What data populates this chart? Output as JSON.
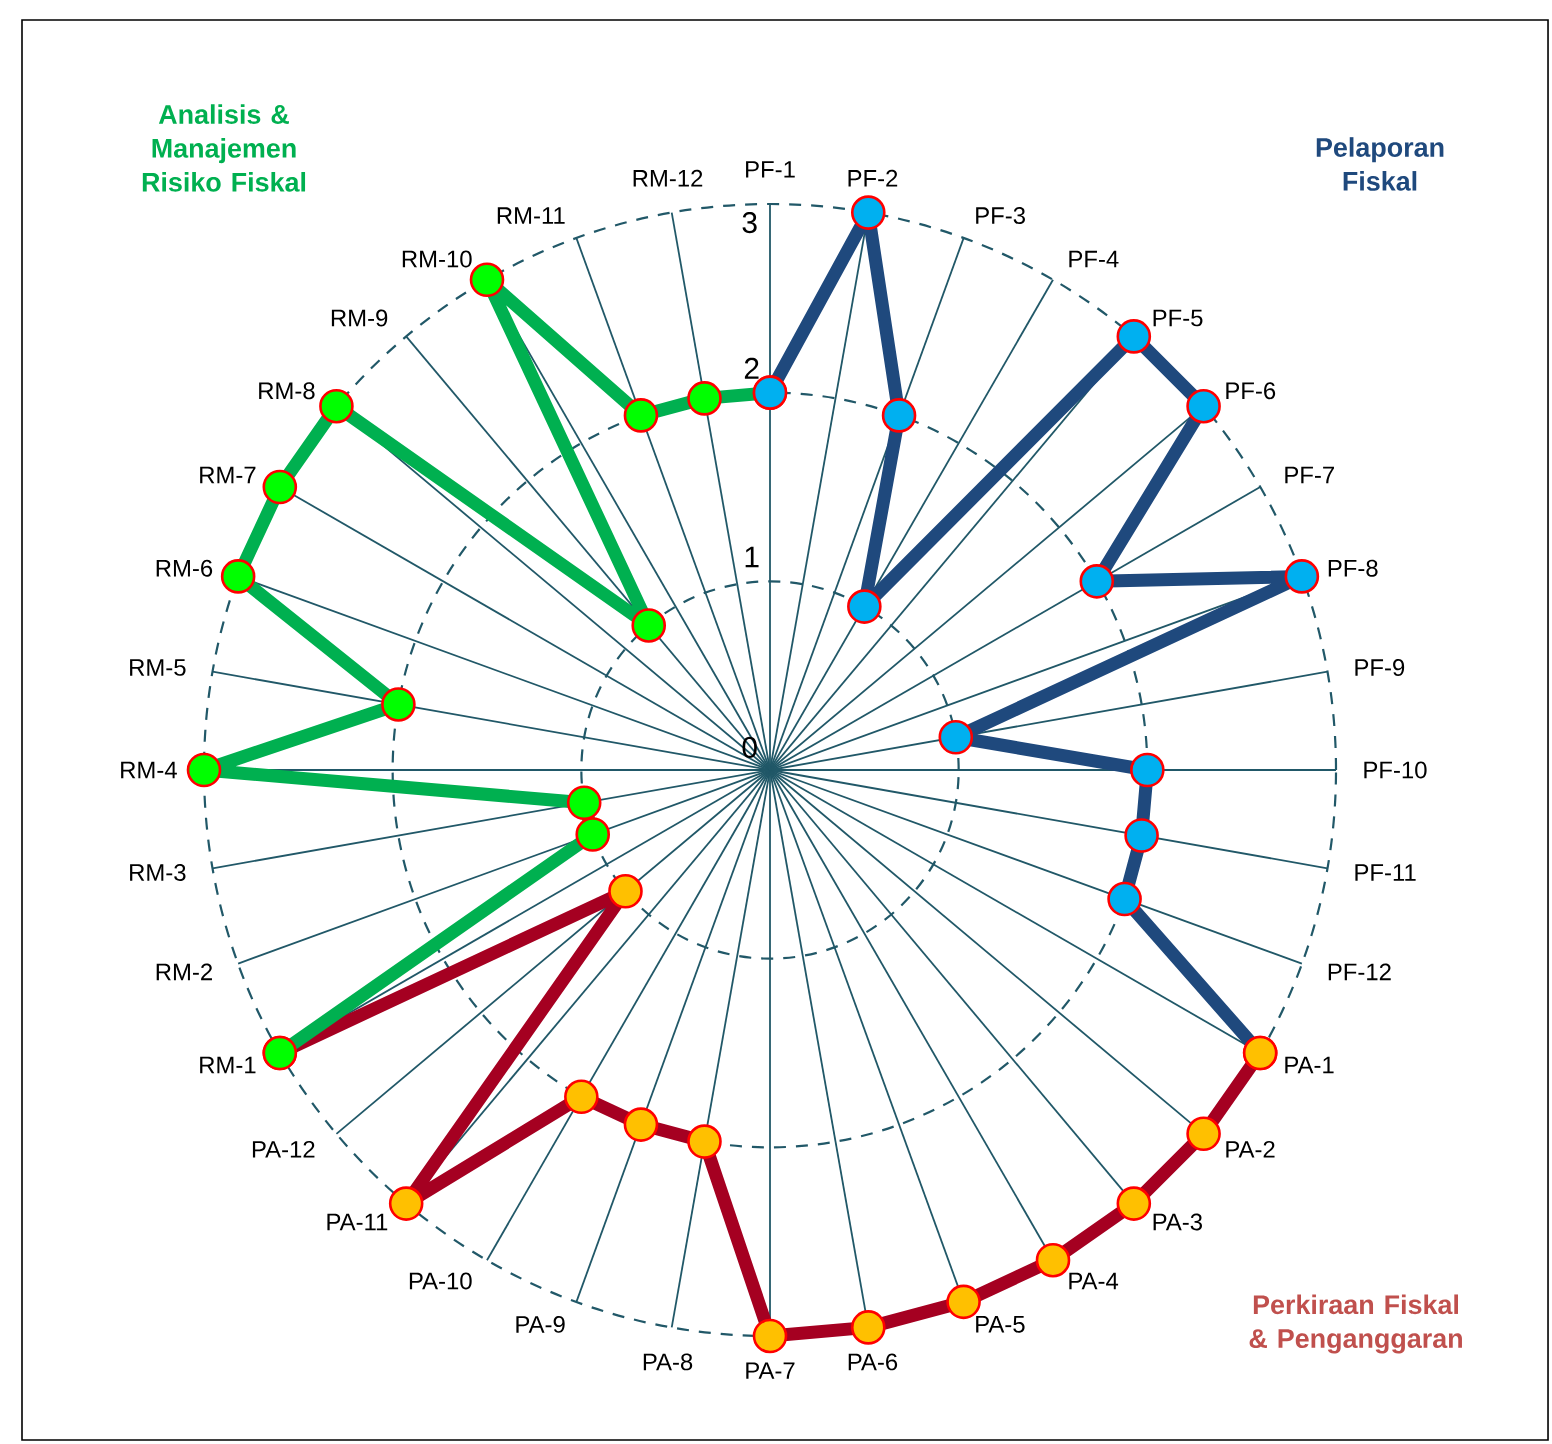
{
  "chart_data": {
    "type": "radar",
    "categories": [
      "PF-1",
      "PF-2",
      "PF-3",
      "PF-4",
      "PF-5",
      "PF-6",
      "PF-7",
      "PF-8",
      "PF-9",
      "PF-10",
      "PF-11",
      "PF-12",
      "PA-1",
      "PA-2",
      "PA-3",
      "PA-4",
      "PA-5",
      "PA-6",
      "PA-7",
      "PA-8",
      "PA-9",
      "PA-10",
      "PA-11",
      "PA-12",
      "RM-1",
      "RM-2",
      "RM-3",
      "RM-4",
      "RM-5",
      "RM-6",
      "RM-7",
      "RM-8",
      "RM-9",
      "RM-10",
      "RM-11",
      "RM-12"
    ],
    "ylim": [
      0,
      3
    ],
    "yticks": [
      0,
      1,
      2,
      3
    ],
    "grid": true,
    "series": [
      {
        "color": "#1f497d",
        "marker": "circle",
        "values": [
          2,
          3,
          2,
          1,
          3,
          3,
          2,
          3,
          1,
          2,
          2,
          2,
          3,
          null,
          null,
          null,
          null,
          null,
          null,
          null,
          null,
          null,
          null,
          null,
          null,
          null,
          null,
          null,
          null,
          null,
          null,
          null,
          null,
          null,
          null,
          null
        ],
        "colors": [
          "#00b0f0",
          "#00b0f0",
          "#00b0f0",
          "#00b0f0",
          "#00b0f0",
          "#00b0f0",
          "#00b0f0",
          "#00b0f0",
          "#00b0f0",
          "#00b0f0",
          "#00b0f0",
          "#00b0f0",
          "#ffc000",
          null,
          null,
          null,
          null,
          null,
          null,
          null,
          null,
          null,
          null,
          null,
          null,
          null,
          null,
          null,
          null,
          null,
          null,
          null,
          null,
          null,
          null,
          null
        ]
      },
      {
        "color": "#a50021",
        "marker": "circle",
        "values": [
          null,
          null,
          null,
          null,
          null,
          null,
          null,
          null,
          null,
          null,
          null,
          null,
          3,
          3,
          3,
          3,
          3,
          3,
          3,
          2,
          2,
          2,
          3,
          1,
          3,
          null,
          null,
          null,
          null,
          null,
          null,
          null,
          null,
          null,
          null,
          null
        ],
        "colors": [
          null,
          null,
          null,
          null,
          null,
          null,
          null,
          null,
          null,
          null,
          null,
          null,
          "#ffc000",
          "#ffc000",
          "#ffc000",
          "#ffc000",
          "#ffc000",
          "#ffc000",
          "#ffc000",
          "#ffc000",
          "#ffc000",
          "#ffc000",
          "#ffc000",
          "#ffc000",
          "#00ff00",
          null,
          null,
          null,
          null,
          null,
          null,
          null,
          null,
          null,
          null,
          null
        ]
      },
      {
        "color": "#00b050",
        "marker": "circle",
        "values": [
          2,
          null,
          null,
          null,
          null,
          null,
          null,
          null,
          null,
          null,
          null,
          null,
          null,
          null,
          null,
          null,
          null,
          null,
          null,
          null,
          null,
          null,
          null,
          null,
          3,
          1,
          1,
          3,
          2,
          3,
          3,
          3,
          1,
          3,
          2,
          2
        ],
        "colors": [
          "#00b0f0",
          null,
          null,
          null,
          null,
          null,
          null,
          null,
          null,
          null,
          null,
          null,
          null,
          null,
          null,
          null,
          null,
          null,
          null,
          null,
          null,
          null,
          null,
          null,
          "#00ff00",
          "#00ff00",
          "#00ff00",
          "#00ff00",
          "#00ff00",
          "#00ff00",
          "#00ff00",
          "#00ff00",
          "#00ff00",
          "#00ff00",
          "#00ff00",
          "#00ff00"
        ]
      }
    ],
    "annotations": [
      "Pelaporan Fiskal",
      "Perkiraan Fiskal & Penganggaran",
      "Analisis & Manajemen Risiko Fiskal"
    ]
  }
}
